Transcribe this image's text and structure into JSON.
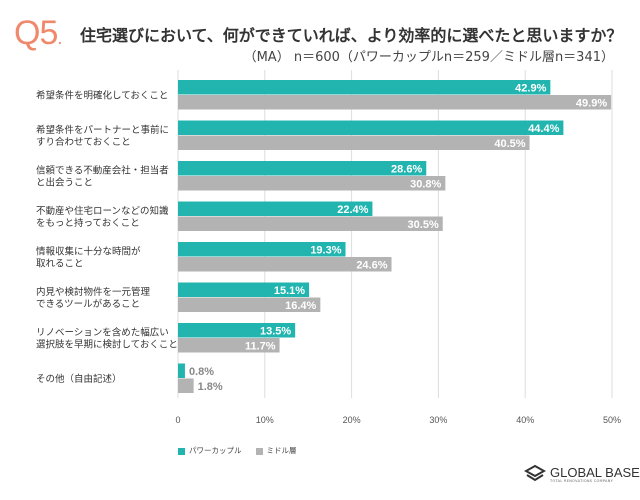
{
  "header": {
    "q_label": "Q5",
    "q_dot": ".",
    "title": "住宅選びにおいて、何ができていれば、より効率的に選べたと思いますか？",
    "subtitle": "（MA） n＝600（パワーカップルn＝259／ミドル層n＝341）"
  },
  "chart_data": {
    "type": "bar",
    "orientation": "horizontal",
    "categories": [
      [
        "希望条件を明確化しておくこと"
      ],
      [
        "希望条件をパートナーと事前に",
        "すり合わせておくこと"
      ],
      [
        "信頼できる不動産会社・担当者",
        "と出会うこと"
      ],
      [
        "不動産や住宅ローンなどの知識",
        "をもっと持っておくこと"
      ],
      [
        "情報収集に十分な時間が",
        "取れること"
      ],
      [
        "内見や検討物件を一元管理",
        "できるツールがあること"
      ],
      [
        "リノベーションを含めた幅広い",
        "選択肢を早期に検討しておくこと"
      ],
      [
        "その他（自由記述）"
      ]
    ],
    "series": [
      {
        "name": "パワーカップル",
        "color": "#22b5b0",
        "values": [
          42.9,
          44.4,
          28.6,
          22.4,
          19.3,
          15.1,
          13.5,
          0.8
        ]
      },
      {
        "name": "ミドル層",
        "color": "#b3b3b3",
        "values": [
          49.9,
          40.5,
          30.8,
          30.5,
          24.6,
          16.4,
          11.7,
          1.8
        ]
      }
    ],
    "xlim": [
      0,
      50
    ],
    "xticks": [
      "0",
      "10%",
      "20%",
      "30%",
      "40%",
      "50%"
    ],
    "grid": true,
    "legend": "bottom-left",
    "value_suffix": "%"
  },
  "logo": {
    "name": "GLOBAL BASE",
    "tagline": "TOTAL RENOVATIONS COMPANY"
  }
}
